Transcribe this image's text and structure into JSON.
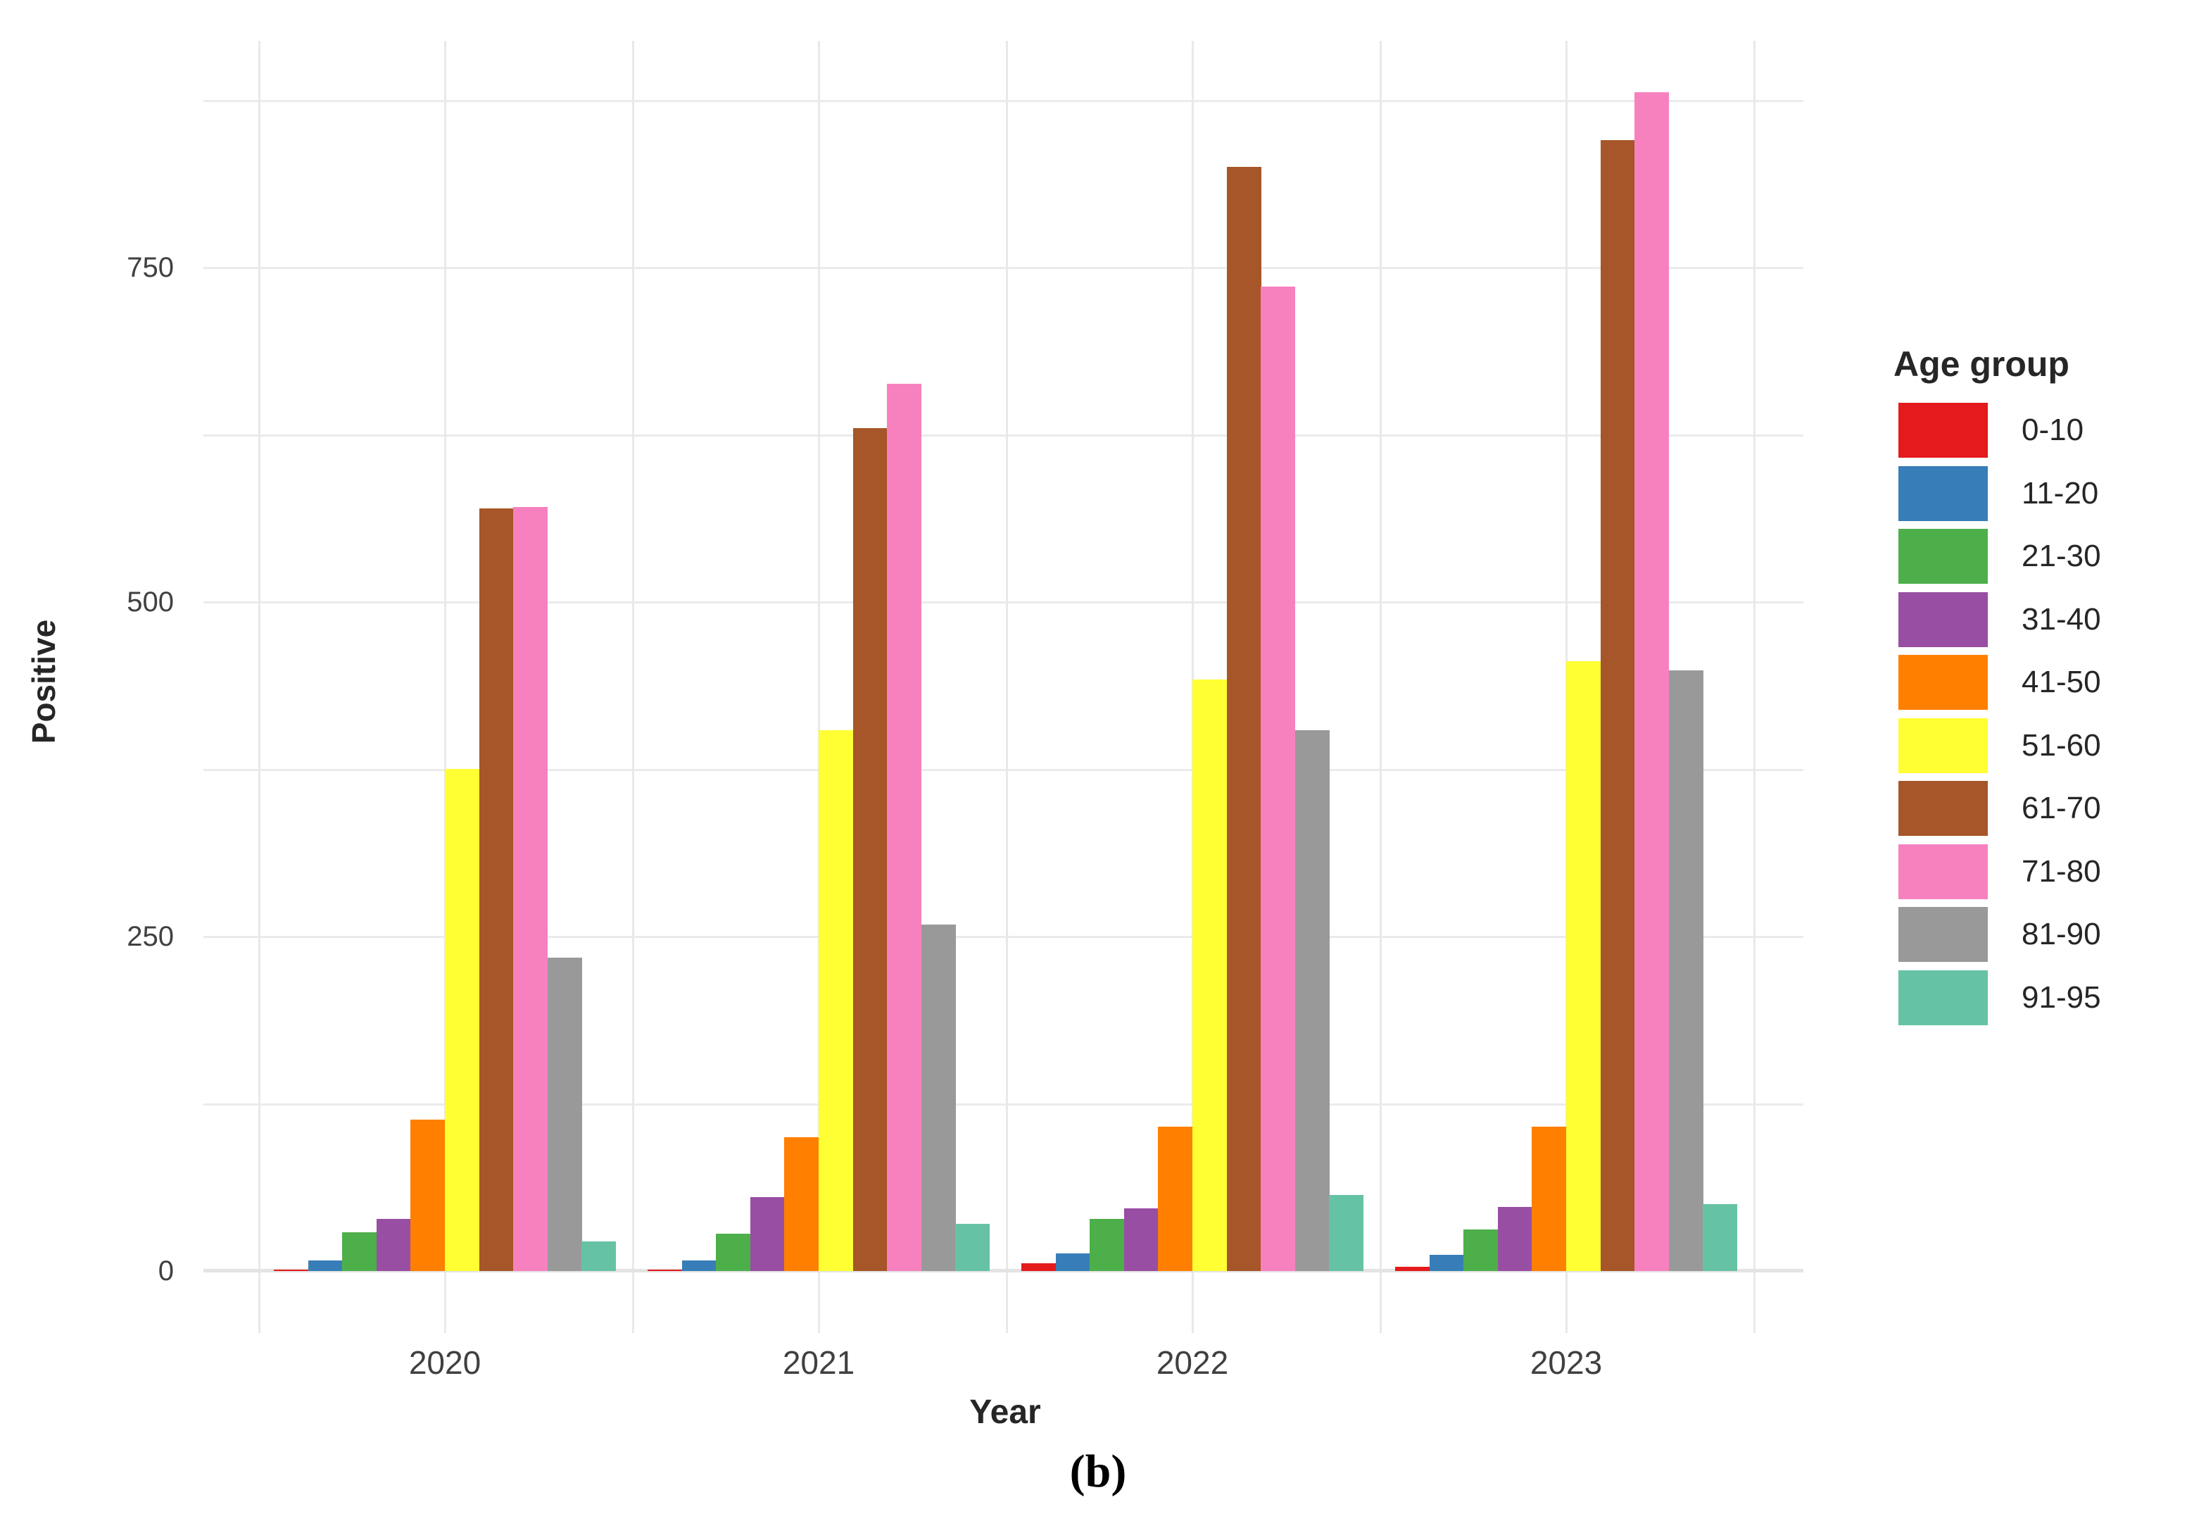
{
  "figure": {
    "caption": "(b)"
  },
  "chart_data": {
    "type": "bar",
    "title": "",
    "xlabel": "Year",
    "ylabel": "Positive",
    "categories": [
      "2020",
      "2021",
      "2022",
      "2023"
    ],
    "y_tick_labels": [
      "0",
      "250",
      "500",
      "750"
    ],
    "y_ticks": [
      0,
      250,
      500,
      750
    ],
    "y_minor_ticks": [
      125,
      375,
      625,
      875
    ],
    "ylim": [
      0,
      918
    ],
    "grid": "on",
    "legend_title": "Age group",
    "legend_position": "right",
    "series": [
      {
        "name": "0-10",
        "color": "#e41a1c",
        "values": [
          1,
          1,
          6,
          3
        ]
      },
      {
        "name": "11-20",
        "color": "#377eb8",
        "values": [
          8,
          8,
          13,
          12
        ]
      },
      {
        "name": "21-30",
        "color": "#4daf4a",
        "values": [
          29,
          28,
          39,
          31
        ]
      },
      {
        "name": "31-40",
        "color": "#984ea3",
        "values": [
          39,
          55,
          47,
          48
        ]
      },
      {
        "name": "41-50",
        "color": "#ff7f00",
        "values": [
          113,
          100,
          108,
          108
        ]
      },
      {
        "name": "51-60",
        "color": "#ffff33",
        "values": [
          375,
          404,
          442,
          456
        ]
      },
      {
        "name": "61-70",
        "color": "#a65628",
        "values": [
          570,
          630,
          825,
          845
        ]
      },
      {
        "name": "71-80",
        "color": "#f781bf",
        "values": [
          571,
          663,
          736,
          881
        ]
      },
      {
        "name": "81-90",
        "color": "#999999",
        "values": [
          234,
          259,
          404,
          449
        ]
      },
      {
        "name": "91-95",
        "color": "#66c2a5",
        "values": [
          22,
          35,
          57,
          50
        ]
      }
    ]
  }
}
